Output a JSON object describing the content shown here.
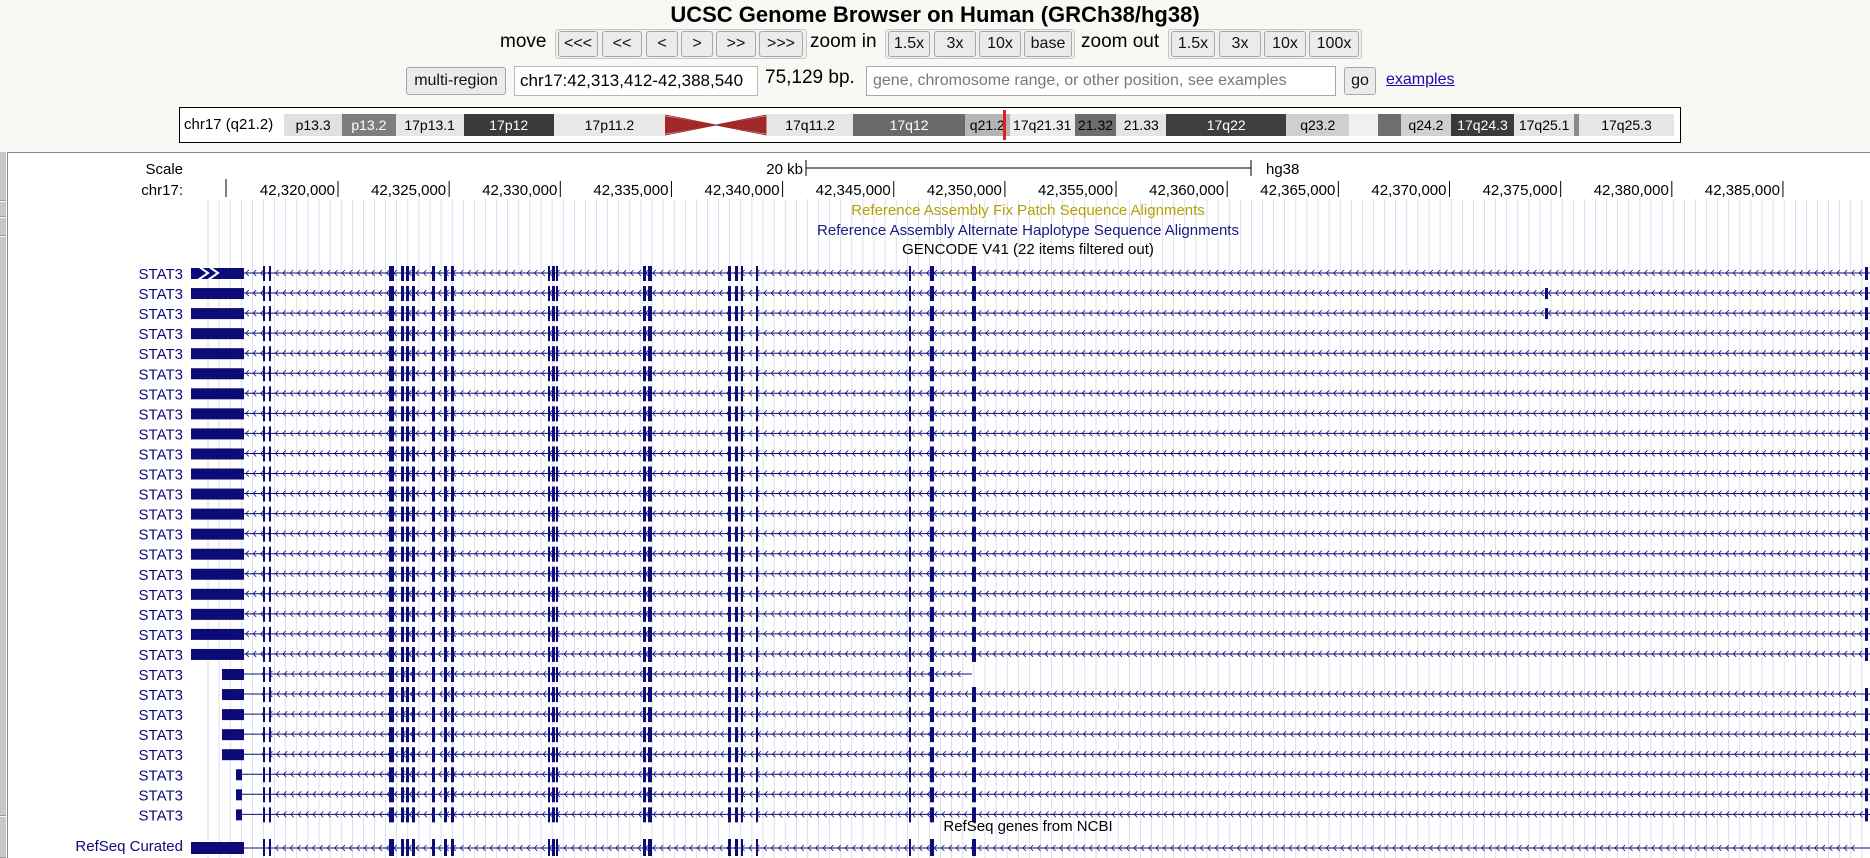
{
  "title": "UCSC Genome Browser on Human (GRCh38/hg38)",
  "nav": {
    "move_label": "move",
    "move_buttons": [
      "<<<",
      "<<",
      "<",
      ">",
      ">>",
      ">>>"
    ],
    "zoom_in_label": "zoom in",
    "zoom_in_buttons": [
      "1.5x",
      "3x",
      "10x",
      "base"
    ],
    "zoom_out_label": "zoom out",
    "zoom_out_buttons": [
      "1.5x",
      "3x",
      "10x",
      "100x"
    ]
  },
  "position_bar": {
    "multi_region_label": "multi-region",
    "position": "chr17:42,313,412-42,388,540",
    "size": "75,129 bp.",
    "search_placeholder": "gene, chromosome range, or other position, see examples",
    "go_label": "go",
    "examples_label": "examples"
  },
  "ideogram": {
    "chrom_label": "chr17 (q21.2)",
    "bands": [
      {
        "label": "p13.3",
        "start": 0.0,
        "end": 0.035,
        "color": "#e0e0e0",
        "text_color": "#000"
      },
      {
        "label": "p13.2",
        "start": 0.035,
        "end": 0.067,
        "color": "#7d7d7d",
        "text_color": "#fff"
      },
      {
        "label": "17p13.1",
        "start": 0.067,
        "end": 0.108,
        "color": "#e6e6e6",
        "text_color": "#000"
      },
      {
        "label": "17p12",
        "start": 0.108,
        "end": 0.162,
        "color": "#3a3a3a",
        "text_color": "#fff"
      },
      {
        "label": "17p11.2",
        "start": 0.162,
        "end": 0.229,
        "color": "#e8e8e8",
        "text_color": "#000"
      },
      {
        "label": "",
        "start": 0.229,
        "end": 0.29,
        "color": "centromere",
        "text_color": "#000"
      },
      {
        "label": "17q11.2",
        "start": 0.29,
        "end": 0.342,
        "color": "#e6e6e6",
        "text_color": "#000"
      },
      {
        "label": "17q12",
        "start": 0.342,
        "end": 0.409,
        "color": "#6a6a6a",
        "text_color": "#fff"
      },
      {
        "label": "q21.2",
        "start": 0.409,
        "end": 0.436,
        "color": "#b5b5b5",
        "text_color": "#000"
      },
      {
        "label": "17q21.31",
        "start": 0.436,
        "end": 0.475,
        "color": "#ececec",
        "text_color": "#000"
      },
      {
        "label": "21.32",
        "start": 0.475,
        "end": 0.5,
        "color": "#6e6e6e",
        "text_color": "#000"
      },
      {
        "label": "21.33",
        "start": 0.5,
        "end": 0.53,
        "color": "#e4e4e4",
        "text_color": "#000"
      },
      {
        "label": "17q22",
        "start": 0.53,
        "end": 0.602,
        "color": "#3e3e3e",
        "text_color": "#fff"
      },
      {
        "label": "q23.2",
        "start": 0.602,
        "end": 0.64,
        "color": "#cfcfcf",
        "text_color": "#000"
      },
      {
        "label": "",
        "start": 0.64,
        "end": 0.657,
        "color": "#f0f0f0",
        "text_color": "#000"
      },
      {
        "label": "",
        "start": 0.657,
        "end": 0.671,
        "color": "#6e6e6e",
        "text_color": "#000"
      },
      {
        "label": "q24.2",
        "start": 0.671,
        "end": 0.701,
        "color": "#cfcfcf",
        "text_color": "#000"
      },
      {
        "label": "17q24.3",
        "start": 0.701,
        "end": 0.739,
        "color": "#3a3a3a",
        "text_color": "#fff"
      },
      {
        "label": "17q25.1",
        "start": 0.739,
        "end": 0.775,
        "color": "#e4e4e4",
        "text_color": "#000"
      },
      {
        "label": "",
        "start": 0.775,
        "end": 0.778,
        "color": "#8a8a8a",
        "text_color": "#000"
      },
      {
        "label": "17q25.3",
        "start": 0.778,
        "end": 0.835,
        "color": "#e6e6e6",
        "text_color": "#000"
      }
    ],
    "marker_color": "#e02020"
  },
  "ruler": {
    "scale_label": "Scale",
    "scale_text": "20 kb",
    "assembly": "hg38",
    "chrom_label": "chr17:",
    "ticks": [
      "42,320,000",
      "42,325,000",
      "42,330,000",
      "42,335,000",
      "42,340,000",
      "42,345,000",
      "42,350,000",
      "42,355,000",
      "42,360,000",
      "42,365,000",
      "42,370,000",
      "42,375,000",
      "42,380,000",
      "42,385,000"
    ]
  },
  "tracks": {
    "fix_patch": "Reference Assembly Fix Patch Sequence Alignments",
    "alt_haplotype": "Reference Assembly Alternate Haplotype Sequence Alignments",
    "gencode": "GENCODE V41 (22 items filtered out)",
    "gene_name": "STAT3",
    "refseq_title": "RefSeq genes from NCBI",
    "refseq_label": "RefSeq Curated"
  },
  "colors": {
    "gene": "#0c0c78",
    "fix_patch": "#b8a000",
    "alt_haplotype": "#1a1a80",
    "grid": "#c8c8ec"
  }
}
